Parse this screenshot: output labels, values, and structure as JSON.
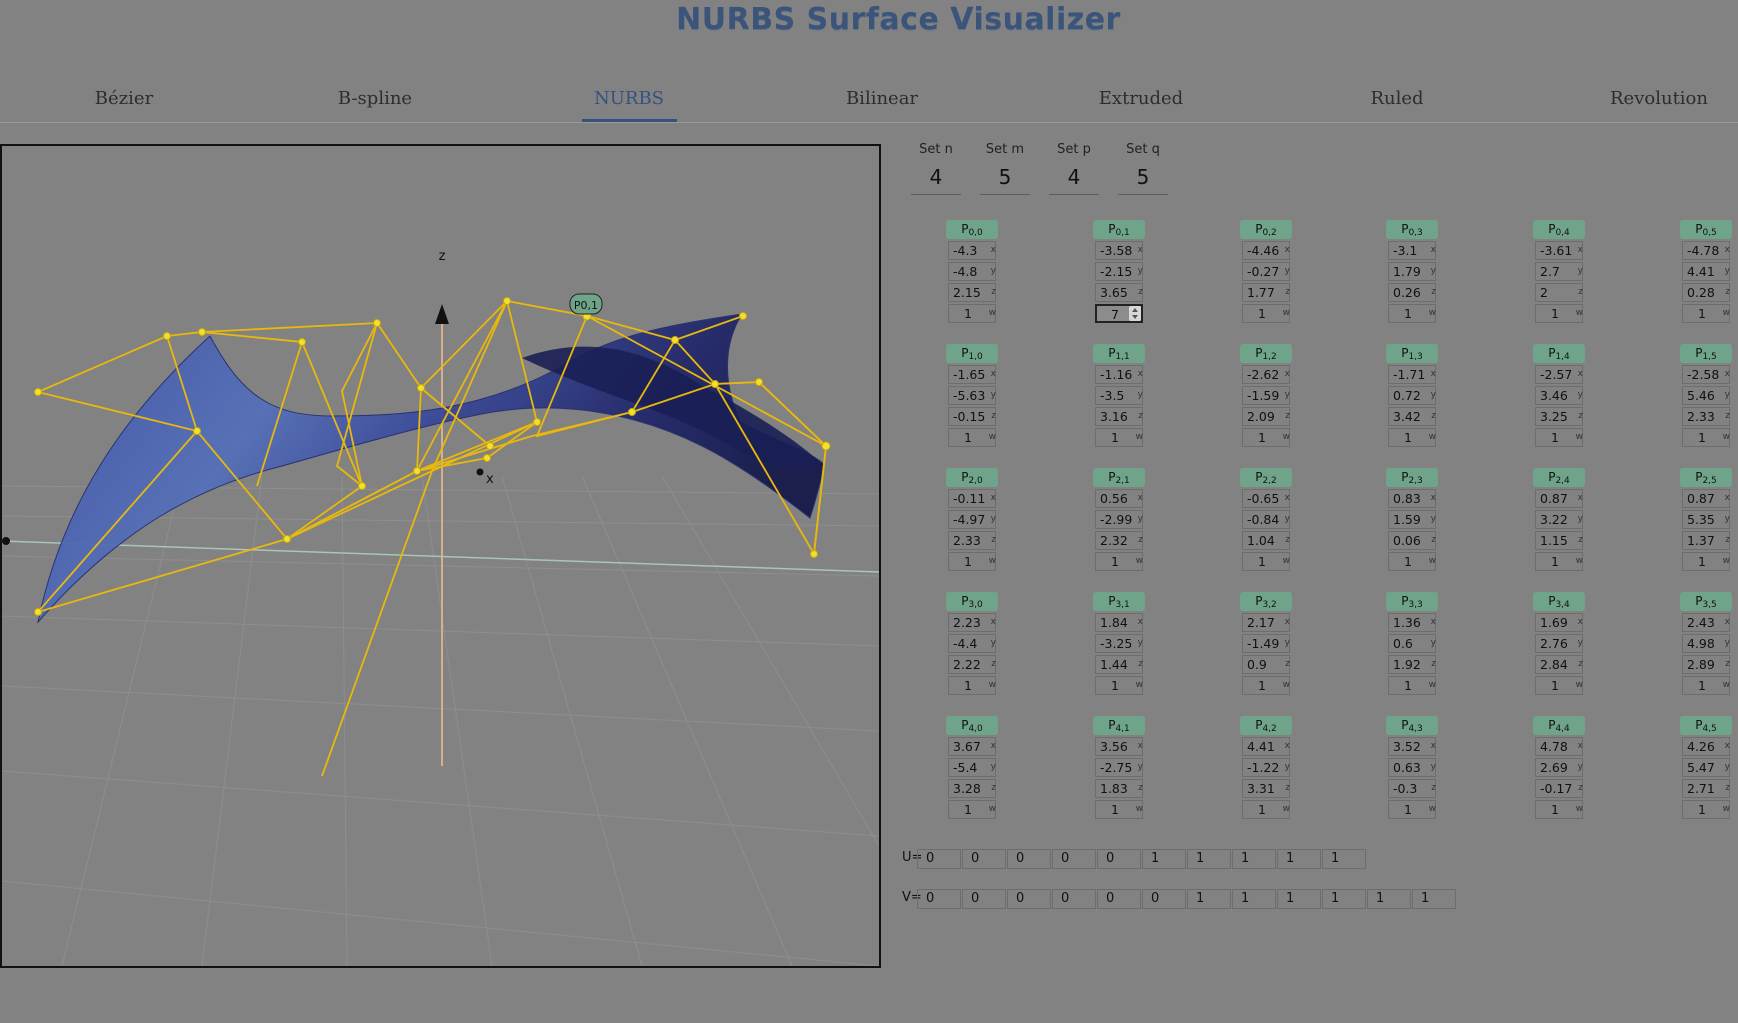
{
  "app": {
    "title": "NURBS Surface Visualizer"
  },
  "tabs": [
    {
      "label": "Bézier",
      "active": false
    },
    {
      "label": "B-spline",
      "active": false
    },
    {
      "label": "NURBS",
      "active": true
    },
    {
      "label": "Bilinear",
      "active": false
    },
    {
      "label": "Extruded",
      "active": false
    },
    {
      "label": "Ruled",
      "active": false
    },
    {
      "label": "Revolution",
      "active": false
    }
  ],
  "viewport": {
    "axis_label_z": "z",
    "axis_label_x": "x",
    "selected_point_label": "P0,1",
    "colors": {
      "surface": "#3a4a9a",
      "control_net": "#e8b80c",
      "point": "#f0e030",
      "label_badge": "#6fa48a"
    }
  },
  "settings": [
    {
      "label": "Set n",
      "value": "4"
    },
    {
      "label": "Set m",
      "value": "5"
    },
    {
      "label": "Set p",
      "value": "4"
    },
    {
      "label": "Set q",
      "value": "5"
    }
  ],
  "control_points": [
    [
      {
        "x": "-4.3",
        "y": "-4.8",
        "z": "2.15",
        "w": "1"
      },
      {
        "x": "-3.58",
        "y": "-2.15",
        "z": "3.65",
        "w": "7"
      },
      {
        "x": "-4.46",
        "y": "-0.27",
        "z": "1.77",
        "w": "1"
      },
      {
        "x": "-3.1",
        "y": "1.79",
        "z": "0.26",
        "w": "1"
      },
      {
        "x": "-3.61",
        "y": "2.7",
        "z": "2",
        "w": "1"
      },
      {
        "x": "-4.78",
        "y": "4.41",
        "z": "0.28",
        "w": "1"
      }
    ],
    [
      {
        "x": "-1.65",
        "y": "-5.63",
        "z": "-0.15",
        "w": "1"
      },
      {
        "x": "-1.16",
        "y": "-3.5",
        "z": "3.16",
        "w": "1"
      },
      {
        "x": "-2.62",
        "y": "-1.59",
        "z": "2.09",
        "w": "1"
      },
      {
        "x": "-1.71",
        "y": "0.72",
        "z": "3.42",
        "w": "1"
      },
      {
        "x": "-2.57",
        "y": "3.46",
        "z": "3.25",
        "w": "1"
      },
      {
        "x": "-2.58",
        "y": "5.46",
        "z": "2.33",
        "w": "1"
      }
    ],
    [
      {
        "x": "-0.11",
        "y": "-4.97",
        "z": "2.33",
        "w": "1"
      },
      {
        "x": "0.56",
        "y": "-2.99",
        "z": "2.32",
        "w": "1"
      },
      {
        "x": "-0.65",
        "y": "-0.84",
        "z": "1.04",
        "w": "1"
      },
      {
        "x": "0.83",
        "y": "1.59",
        "z": "0.06",
        "w": "1"
      },
      {
        "x": "0.87",
        "y": "3.22",
        "z": "1.15",
        "w": "1"
      },
      {
        "x": "0.87",
        "y": "5.35",
        "z": "1.37",
        "w": "1"
      }
    ],
    [
      {
        "x": "2.23",
        "y": "-4.4",
        "z": "2.22",
        "w": "1"
      },
      {
        "x": "1.84",
        "y": "-3.25",
        "z": "1.44",
        "w": "1"
      },
      {
        "x": "2.17",
        "y": "-1.49",
        "z": "0.9",
        "w": "1"
      },
      {
        "x": "1.36",
        "y": "0.6",
        "z": "1.92",
        "w": "1"
      },
      {
        "x": "1.69",
        "y": "2.76",
        "z": "2.84",
        "w": "1"
      },
      {
        "x": "2.43",
        "y": "4.98",
        "z": "2.89",
        "w": "1"
      }
    ],
    [
      {
        "x": "3.67",
        "y": "-5.4",
        "z": "3.28",
        "w": "1"
      },
      {
        "x": "3.56",
        "y": "-2.75",
        "z": "1.83",
        "w": "1"
      },
      {
        "x": "4.41",
        "y": "-1.22",
        "z": "3.31",
        "w": "1"
      },
      {
        "x": "3.52",
        "y": "0.63",
        "z": "-0.3",
        "w": "1"
      },
      {
        "x": "4.78",
        "y": "2.69",
        "z": "-0.17",
        "w": "1"
      },
      {
        "x": "4.26",
        "y": "5.47",
        "z": "2.71",
        "w": "1"
      }
    ]
  ],
  "axis_tags": {
    "x": "x",
    "y": "y",
    "z": "z",
    "w": "w"
  },
  "knots": {
    "u_label": "U=",
    "v_label": "V=",
    "u": [
      "0",
      "0",
      "0",
      "0",
      "0",
      "1",
      "1",
      "1",
      "1",
      "1"
    ],
    "v": [
      "0",
      "0",
      "0",
      "0",
      "0",
      "0",
      "1",
      "1",
      "1",
      "1",
      "1",
      "1"
    ]
  }
}
